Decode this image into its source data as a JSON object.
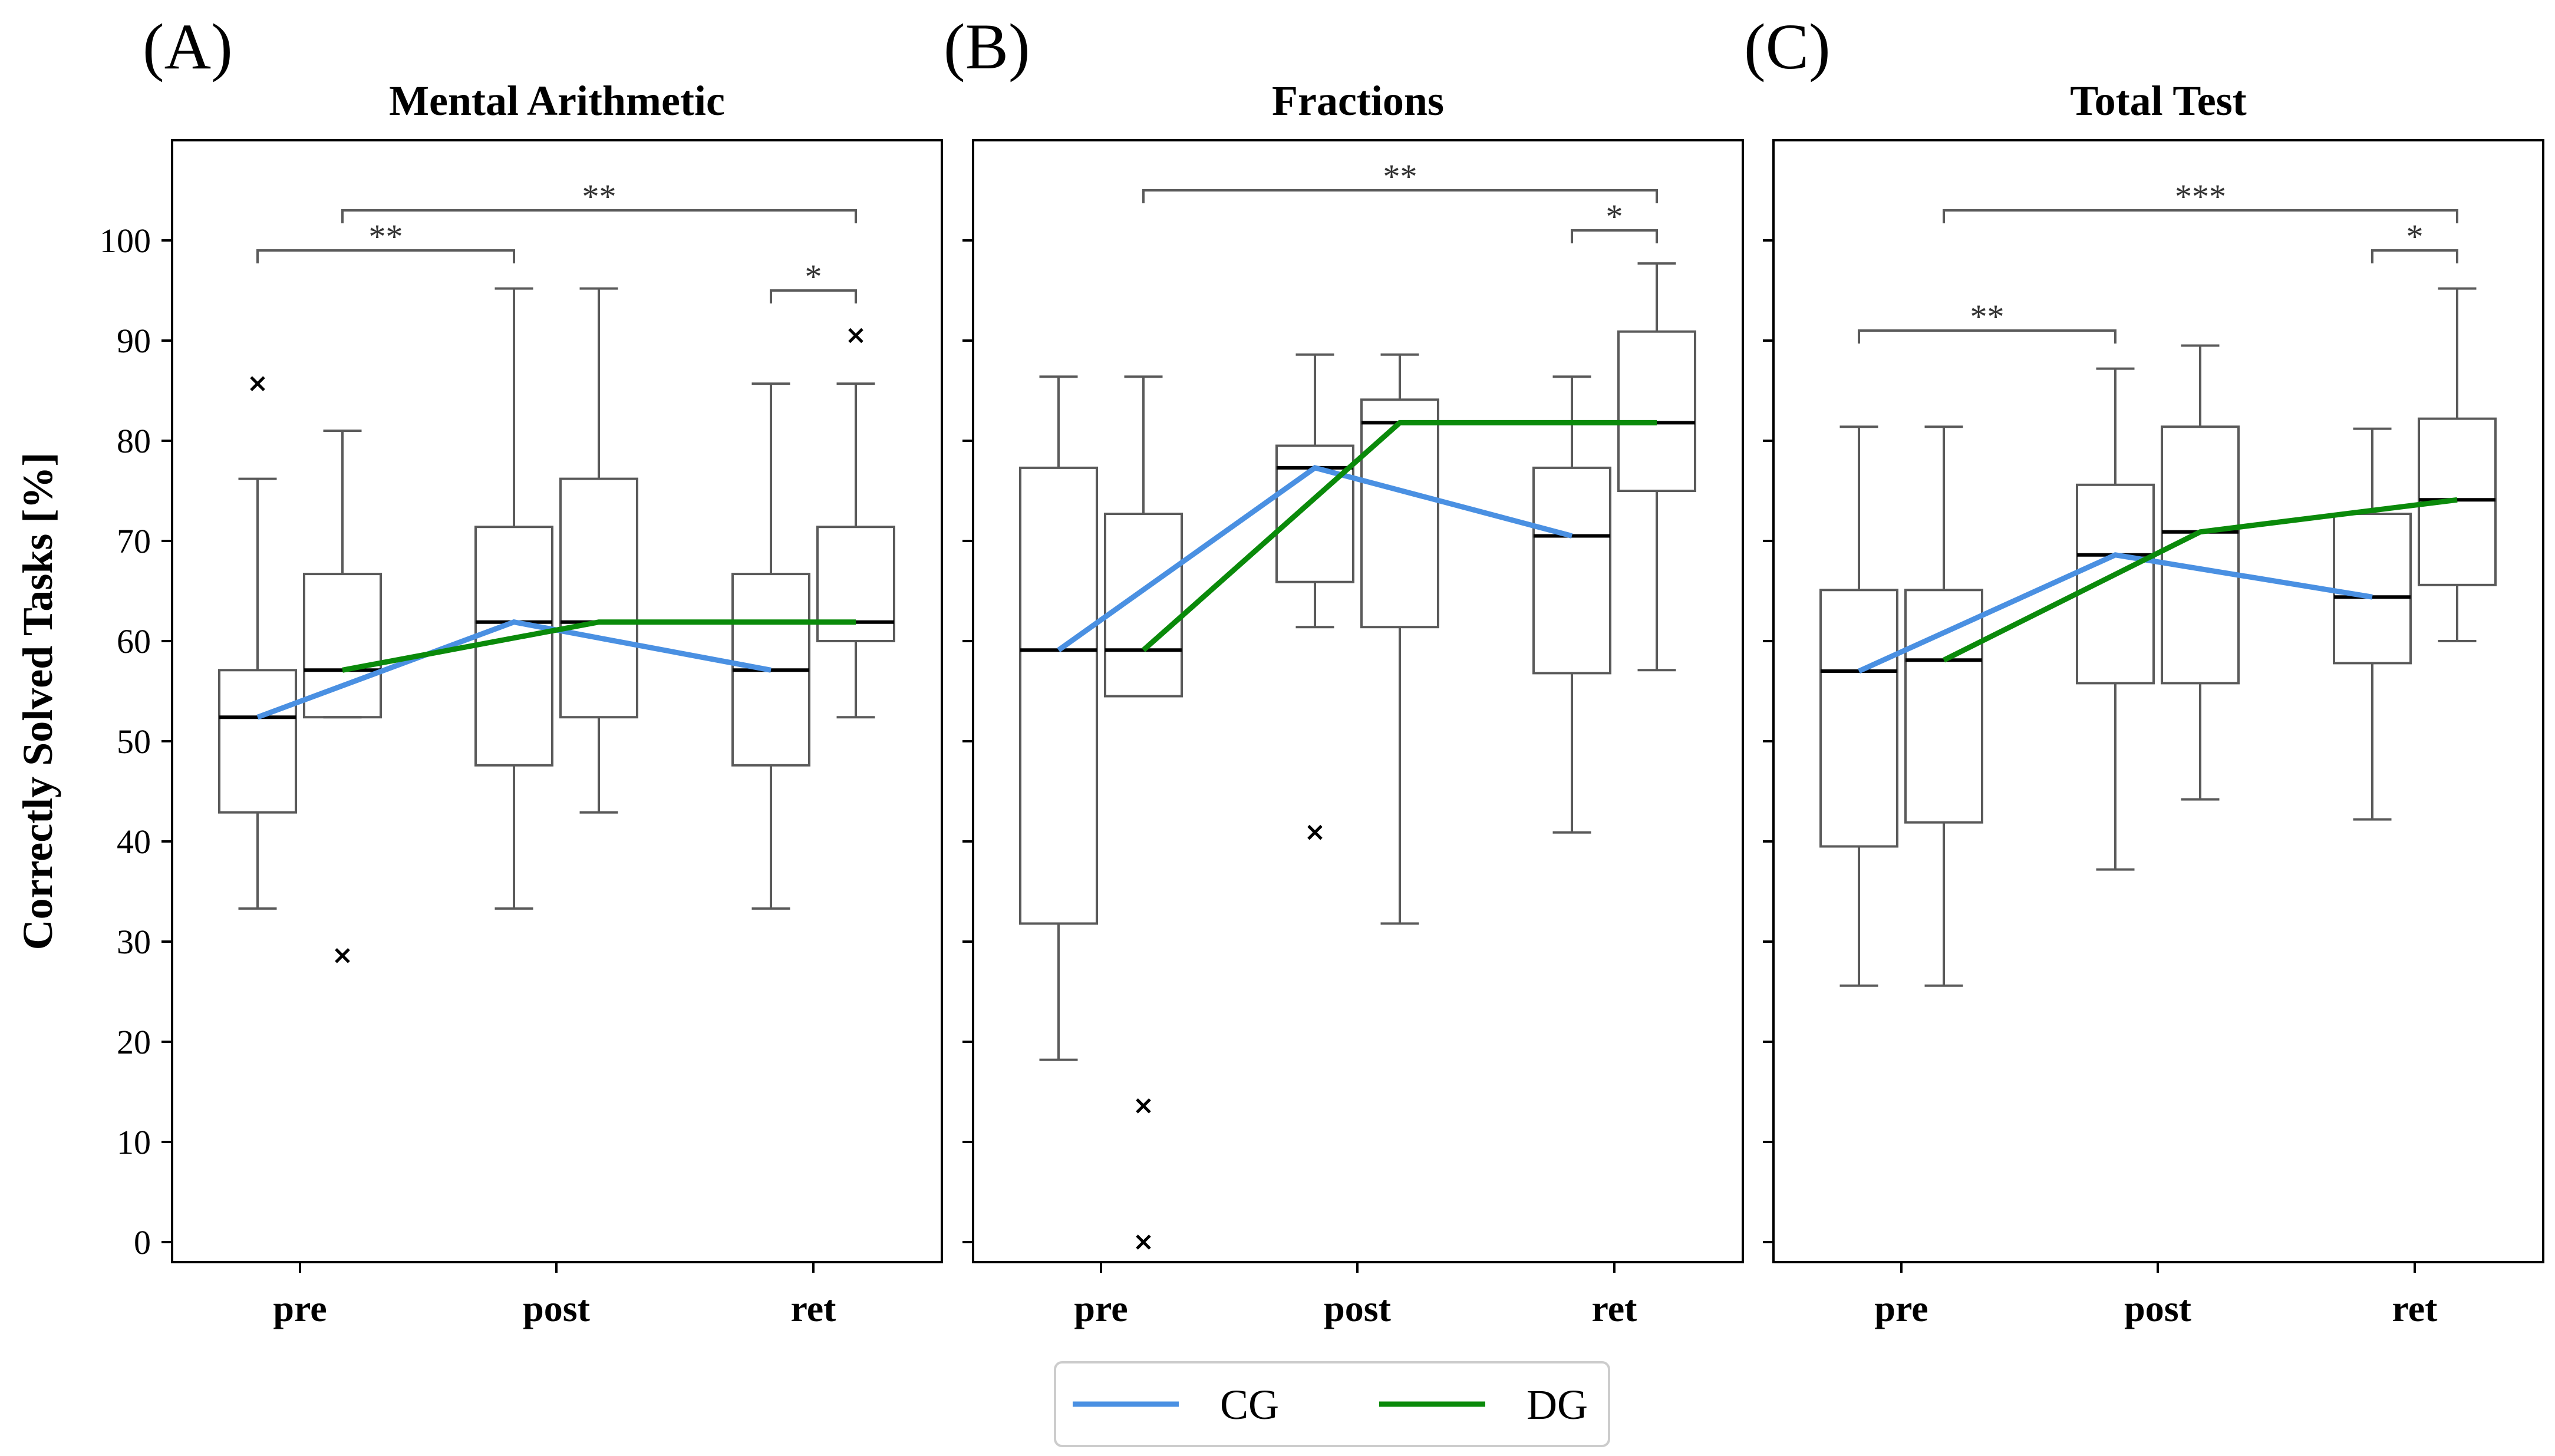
{
  "chart_data": {
    "type": "box",
    "ylabel": "Correctly Solved Tasks [%]",
    "ylim": [
      -2,
      110
    ],
    "yticks": [
      0,
      10,
      20,
      30,
      40,
      50,
      60,
      70,
      80,
      90,
      100
    ],
    "categories": [
      "pre",
      "post",
      "ret"
    ],
    "legend": {
      "placement": "bottom-center",
      "entries": [
        {
          "name": "CG",
          "color": "#4a90e2"
        },
        {
          "name": "DG",
          "color": "#0a8a0a"
        }
      ]
    },
    "colors": {
      "box": "#5a5a5a",
      "median": "#000000",
      "bracket": "#5a5a5a"
    },
    "panels": [
      {
        "letter": "(A)",
        "title": "Mental Arithmetic",
        "boxes": {
          "CG": [
            {
              "category": "pre",
              "whislo": 33.3,
              "q1": 42.9,
              "med": 52.4,
              "q3": 57.1,
              "whishi": 76.2,
              "fliers": [
                85.7
              ]
            },
            {
              "category": "post",
              "whislo": 33.3,
              "q1": 47.6,
              "med": 61.9,
              "q3": 71.4,
              "whishi": 95.2,
              "fliers": []
            },
            {
              "category": "ret",
              "whislo": 33.3,
              "q1": 47.6,
              "med": 57.1,
              "q3": 66.7,
              "whishi": 85.7,
              "fliers": []
            }
          ],
          "DG": [
            {
              "category": "pre",
              "whislo": 52.4,
              "q1": 52.4,
              "med": 57.1,
              "q3": 66.7,
              "whishi": 81.0,
              "fliers": [
                28.6
              ]
            },
            {
              "category": "post",
              "whislo": 42.9,
              "q1": 52.4,
              "med": 61.9,
              "q3": 76.2,
              "whishi": 95.2,
              "fliers": []
            },
            {
              "category": "ret",
              "whislo": 52.4,
              "q1": 60.0,
              "med": 61.9,
              "q3": 71.4,
              "whishi": 85.7,
              "fliers": [
                90.5
              ]
            }
          ]
        },
        "brackets": [
          {
            "from": "CG-pre",
            "to": "CG-post",
            "label": "**",
            "level": 99.0
          },
          {
            "from": "DG-pre",
            "to": "DG-ret",
            "label": "**",
            "level": 103.0
          },
          {
            "from": "CG-ret",
            "to": "DG-ret",
            "label": "*",
            "level": 95.0
          }
        ]
      },
      {
        "letter": "(B)",
        "title": "Fractions",
        "boxes": {
          "CG": [
            {
              "category": "pre",
              "whislo": 18.2,
              "q1": 31.8,
              "med": 59.1,
              "q3": 77.3,
              "whishi": 86.4,
              "fliers": []
            },
            {
              "category": "post",
              "whislo": 61.4,
              "q1": 65.9,
              "med": 77.3,
              "q3": 79.5,
              "whishi": 88.6,
              "fliers": [
                40.9
              ]
            },
            {
              "category": "ret",
              "whislo": 40.9,
              "q1": 56.8,
              "med": 70.5,
              "q3": 77.3,
              "whishi": 86.4,
              "fliers": []
            }
          ],
          "DG": [
            {
              "category": "pre",
              "whislo": 54.5,
              "q1": 54.5,
              "med": 59.1,
              "q3": 72.7,
              "whishi": 86.4,
              "fliers": [
                13.6,
                0.0
              ]
            },
            {
              "category": "post",
              "whislo": 31.8,
              "q1": 61.4,
              "med": 81.8,
              "q3": 84.1,
              "whishi": 88.6,
              "fliers": []
            },
            {
              "category": "ret",
              "whislo": 57.1,
              "q1": 75.0,
              "med": 81.8,
              "q3": 90.9,
              "whishi": 97.7,
              "fliers": []
            }
          ]
        },
        "brackets": [
          {
            "from": "DG-pre",
            "to": "DG-ret",
            "label": "**",
            "level": 105.0
          },
          {
            "from": "CG-ret",
            "to": "DG-ret",
            "label": "*",
            "level": 101.0
          }
        ]
      },
      {
        "letter": "(C)",
        "title": "Total Test",
        "boxes": {
          "CG": [
            {
              "category": "pre",
              "whislo": 25.6,
              "q1": 39.5,
              "med": 57.0,
              "q3": 65.1,
              "whishi": 81.4,
              "fliers": []
            },
            {
              "category": "post",
              "whislo": 37.2,
              "q1": 55.8,
              "med": 68.6,
              "q3": 75.6,
              "whishi": 87.2,
              "fliers": []
            },
            {
              "category": "ret",
              "whislo": 42.2,
              "q1": 57.8,
              "med": 64.4,
              "q3": 72.7,
              "whishi": 81.2,
              "fliers": []
            }
          ],
          "DG": [
            {
              "category": "pre",
              "whislo": 25.6,
              "q1": 41.9,
              "med": 58.1,
              "q3": 65.1,
              "whishi": 81.4,
              "fliers": []
            },
            {
              "category": "post",
              "whislo": 44.2,
              "q1": 55.8,
              "med": 70.9,
              "q3": 81.4,
              "whishi": 89.5,
              "fliers": []
            },
            {
              "category": "ret",
              "whislo": 60.0,
              "q1": 65.6,
              "med": 74.1,
              "q3": 82.2,
              "whishi": 95.2,
              "fliers": []
            }
          ]
        },
        "brackets": [
          {
            "from": "CG-pre",
            "to": "CG-post",
            "label": "**",
            "level": 91.0
          },
          {
            "from": "DG-pre",
            "to": "DG-ret",
            "label": "***",
            "level": 103.0
          },
          {
            "from": "CG-ret",
            "to": "DG-ret",
            "label": "*",
            "level": 99.0
          }
        ]
      }
    ]
  }
}
